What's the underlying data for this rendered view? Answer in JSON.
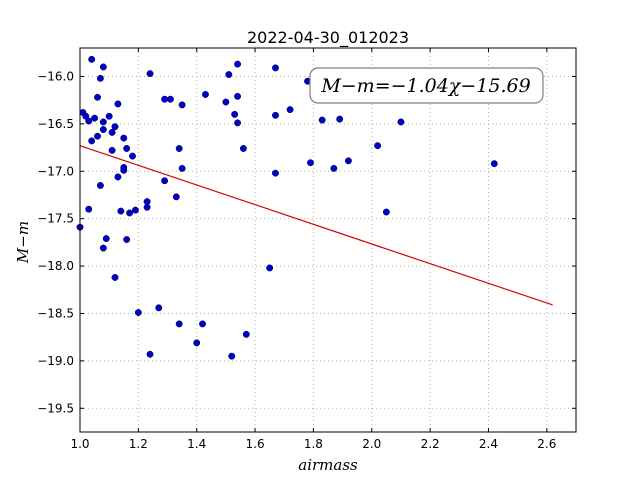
{
  "chart_data": {
    "type": "scatter",
    "title": "2022-04-30_012023",
    "xlabel": "airmass",
    "ylabel": "M−m",
    "xlim": [
      1.0,
      2.7
    ],
    "ylim": [
      -15.7,
      -19.75
    ],
    "x_ticks": [
      1.0,
      1.2,
      1.4,
      1.6,
      1.8,
      2.0,
      2.2,
      2.4,
      2.6
    ],
    "x_tick_labels": [
      "1.0",
      "1.2",
      "1.4",
      "1.6",
      "1.8",
      "2.0",
      "2.2",
      "2.4",
      "2.6"
    ],
    "y_ticks": [
      -16.0,
      -16.5,
      -17.0,
      -17.5,
      -18.0,
      -18.5,
      -19.0,
      -19.5
    ],
    "y_tick_labels": [
      "−16.0",
      "−16.5",
      "−17.0",
      "−17.5",
      "−18.0",
      "−18.5",
      "−19.0",
      "−19.5"
    ],
    "grid": true,
    "annotation": "M−m=−1.04χ−15.69",
    "colors": {
      "points": "#0000cc",
      "fit": "#dd0000",
      "grid": "#b0b0b0"
    },
    "points": [
      {
        "x": 1.0,
        "y": -17.59
      },
      {
        "x": 1.01,
        "y": -16.38
      },
      {
        "x": 1.02,
        "y": -16.42
      },
      {
        "x": 1.03,
        "y": -16.47
      },
      {
        "x": 1.03,
        "y": -17.4
      },
      {
        "x": 1.04,
        "y": -15.82
      },
      {
        "x": 1.04,
        "y": -16.68
      },
      {
        "x": 1.05,
        "y": -16.44
      },
      {
        "x": 1.06,
        "y": -16.22
      },
      {
        "x": 1.06,
        "y": -16.63
      },
      {
        "x": 1.07,
        "y": -16.02
      },
      {
        "x": 1.07,
        "y": -17.15
      },
      {
        "x": 1.08,
        "y": -15.9
      },
      {
        "x": 1.08,
        "y": -16.48
      },
      {
        "x": 1.08,
        "y": -16.56
      },
      {
        "x": 1.08,
        "y": -17.81
      },
      {
        "x": 1.09,
        "y": -17.71
      },
      {
        "x": 1.1,
        "y": -16.42
      },
      {
        "x": 1.11,
        "y": -16.59
      },
      {
        "x": 1.11,
        "y": -16.78
      },
      {
        "x": 1.12,
        "y": -16.53
      },
      {
        "x": 1.12,
        "y": -18.12
      },
      {
        "x": 1.13,
        "y": -16.29
      },
      {
        "x": 1.13,
        "y": -17.06
      },
      {
        "x": 1.14,
        "y": -17.42
      },
      {
        "x": 1.15,
        "y": -16.65
      },
      {
        "x": 1.15,
        "y": -16.96
      },
      {
        "x": 1.15,
        "y": -16.99
      },
      {
        "x": 1.16,
        "y": -17.72
      },
      {
        "x": 1.16,
        "y": -16.76
      },
      {
        "x": 1.17,
        "y": -17.44
      },
      {
        "x": 1.18,
        "y": -16.84
      },
      {
        "x": 1.19,
        "y": -17.41
      },
      {
        "x": 1.2,
        "y": -18.49
      },
      {
        "x": 1.23,
        "y": -17.38
      },
      {
        "x": 1.23,
        "y": -17.32
      },
      {
        "x": 1.24,
        "y": -15.97
      },
      {
        "x": 1.24,
        "y": -18.93
      },
      {
        "x": 1.27,
        "y": -18.44
      },
      {
        "x": 1.29,
        "y": -16.24
      },
      {
        "x": 1.29,
        "y": -17.1
      },
      {
        "x": 1.31,
        "y": -16.24
      },
      {
        "x": 1.33,
        "y": -17.27
      },
      {
        "x": 1.34,
        "y": -18.61
      },
      {
        "x": 1.34,
        "y": -16.76
      },
      {
        "x": 1.35,
        "y": -16.3
      },
      {
        "x": 1.35,
        "y": -16.97
      },
      {
        "x": 1.4,
        "y": -18.81
      },
      {
        "x": 1.42,
        "y": -18.61
      },
      {
        "x": 1.43,
        "y": -16.19
      },
      {
        "x": 1.5,
        "y": -16.27
      },
      {
        "x": 1.51,
        "y": -15.98
      },
      {
        "x": 1.52,
        "y": -18.95
      },
      {
        "x": 1.53,
        "y": -16.4
      },
      {
        "x": 1.54,
        "y": -16.21
      },
      {
        "x": 1.54,
        "y": -16.49
      },
      {
        "x": 1.54,
        "y": -15.87
      },
      {
        "x": 1.56,
        "y": -16.76
      },
      {
        "x": 1.57,
        "y": -18.72
      },
      {
        "x": 1.65,
        "y": -18.02
      },
      {
        "x": 1.67,
        "y": -15.91
      },
      {
        "x": 1.67,
        "y": -17.02
      },
      {
        "x": 1.67,
        "y": -16.41
      },
      {
        "x": 1.72,
        "y": -16.35
      },
      {
        "x": 1.78,
        "y": -16.05
      },
      {
        "x": 1.79,
        "y": -16.91
      },
      {
        "x": 1.83,
        "y": -16.46
      },
      {
        "x": 1.87,
        "y": -16.97
      },
      {
        "x": 1.89,
        "y": -16.45
      },
      {
        "x": 1.92,
        "y": -16.89
      },
      {
        "x": 2.02,
        "y": -16.73
      },
      {
        "x": 2.05,
        "y": -17.43
      },
      {
        "x": 2.1,
        "y": -16.48
      },
      {
        "x": 2.42,
        "y": -16.92
      }
    ],
    "fit_line": {
      "x": [
        1.0,
        2.62
      ],
      "y": [
        -16.73,
        -18.41
      ]
    }
  }
}
